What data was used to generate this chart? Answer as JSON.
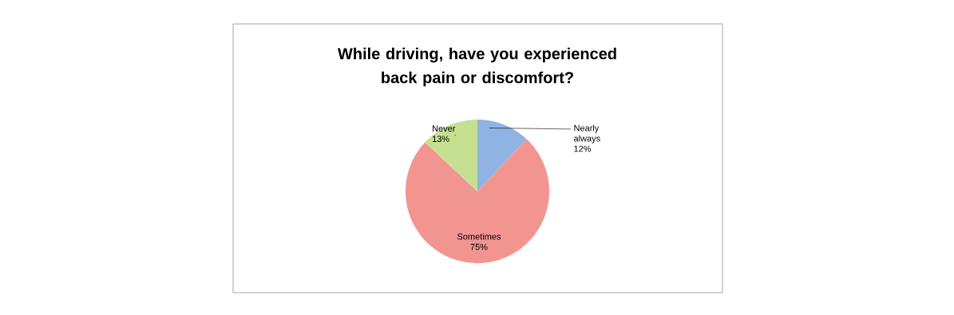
{
  "chart_data": {
    "type": "pie",
    "title": "While driving, have you experienced back pain or discomfort?",
    "categories": [
      "Nearly always",
      "Sometimes",
      "Never"
    ],
    "values": [
      12,
      75,
      13
    ],
    "value_labels": [
      "12%",
      "75%",
      "13%"
    ],
    "colors": [
      "#8fb4e3",
      "#f29591",
      "#c6e092"
    ]
  }
}
